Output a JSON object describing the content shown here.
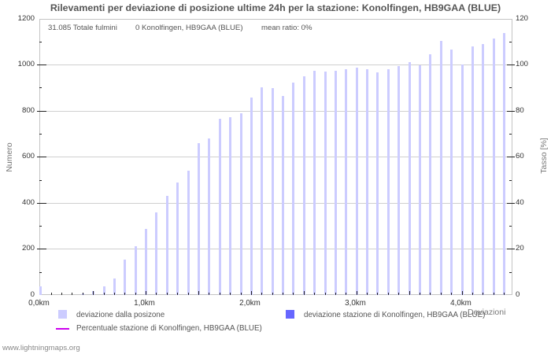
{
  "title": "Rilevamenti per deviazione di posizione ultime 24h per la stazione: Konolfingen, HB9GAA (BLUE)",
  "info": {
    "total": "31.085 Totale fulmini",
    "station": "0 Konolfingen, HB9GAA (BLUE)",
    "mean_ratio": "mean ratio: 0%"
  },
  "axes": {
    "left_title": "Numero",
    "right_title": "Tasso [%]",
    "x_title": "Deviazioni",
    "left_ticks": [
      "0",
      "200",
      "400",
      "600",
      "800",
      "1000",
      "1200"
    ],
    "right_ticks": [
      "0",
      "20",
      "40",
      "60",
      "80",
      "100",
      "120"
    ],
    "x_ticks": [
      "0,0km",
      "1,0km",
      "2,0km",
      "3,0km",
      "4,0km"
    ]
  },
  "legend": {
    "item1": "deviazione dalla posizone",
    "item2": "deviazione stazione di Konolfingen, HB9GAA (BLUE)",
    "item3": "Percentuale stazione di Konolfingen, HB9GAA (BLUE)"
  },
  "colors": {
    "bars": "#ccccff",
    "station_bars": "#6666ff",
    "percent_line": "#cc00ee",
    "grid": "#cfcfcf"
  },
  "footer": "www.lightningmaps.org",
  "chart_data": {
    "type": "bar",
    "title": "Rilevamenti per deviazione di posizione ultime 24h per la stazione: Konolfingen, HB9GAA (BLUE)",
    "xlabel": "Deviazioni",
    "ylabel": "Numero",
    "y2label": "Tasso [%]",
    "ylim": [
      0,
      1200
    ],
    "y2lim": [
      0,
      120
    ],
    "grid": true,
    "legend_position": "bottom",
    "x_unit": "km",
    "categories": [
      "0.0",
      "0.1",
      "0.2",
      "0.3",
      "0.4",
      "0.5",
      "0.6",
      "0.7",
      "0.8",
      "0.9",
      "1.0",
      "1.1",
      "1.2",
      "1.3",
      "1.4",
      "1.5",
      "1.6",
      "1.7",
      "1.8",
      "1.9",
      "2.0",
      "2.1",
      "2.2",
      "2.3",
      "2.4",
      "2.5",
      "2.6",
      "2.7",
      "2.8",
      "2.9",
      "3.0",
      "3.1",
      "3.2",
      "3.3",
      "3.4",
      "3.5",
      "3.6",
      "3.7",
      "3.8",
      "3.9",
      "4.0",
      "4.1",
      "4.2",
      "4.3",
      "4.4"
    ],
    "series": [
      {
        "name": "deviazione dalla posizone",
        "axis": "left",
        "values": [
          38,
          0,
          0,
          0,
          8,
          18,
          38,
          73,
          152,
          213,
          288,
          359,
          429,
          489,
          540,
          659,
          680,
          766,
          773,
          789,
          858,
          902,
          898,
          865,
          923,
          950,
          974,
          969,
          973,
          980,
          986,
          980,
          966,
          980,
          993,
          1010,
          998,
          1044,
          1102,
          1065,
          1000,
          1078,
          1089,
          1112,
          1136
        ]
      },
      {
        "name": "deviazione stazione di Konolfingen, HB9GAA (BLUE)",
        "axis": "left",
        "values": [
          0,
          0,
          0,
          0,
          0,
          0,
          0,
          0,
          0,
          0,
          0,
          0,
          0,
          0,
          0,
          0,
          0,
          0,
          0,
          0,
          0,
          0,
          0,
          0,
          0,
          0,
          0,
          0,
          0,
          0,
          0,
          0,
          0,
          0,
          0,
          0,
          0,
          0,
          0,
          0,
          0,
          0,
          0,
          0,
          0
        ]
      },
      {
        "name": "Percentuale stazione di Konolfingen, HB9GAA (BLUE)",
        "axis": "right",
        "type": "line",
        "values": [
          0,
          0,
          0,
          0,
          0,
          0,
          0,
          0,
          0,
          0,
          0,
          0,
          0,
          0,
          0,
          0,
          0,
          0,
          0,
          0,
          0,
          0,
          0,
          0,
          0,
          0,
          0,
          0,
          0,
          0,
          0,
          0,
          0,
          0,
          0,
          0,
          0,
          0,
          0,
          0,
          0,
          0,
          0,
          0,
          0
        ]
      }
    ]
  }
}
